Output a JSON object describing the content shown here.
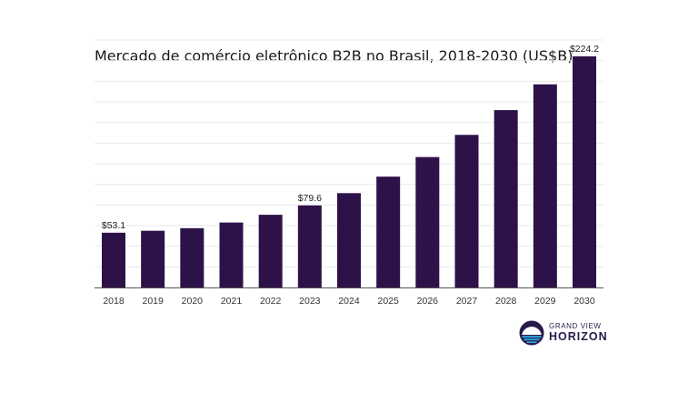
{
  "colors": {
    "bar": "#2d1249",
    "logo_dark": "#2a1a4a",
    "logo_blue": "#2aa8e0"
  },
  "logo": {
    "top_text": "GRAND VIEW",
    "bottom_text": "HORIZON",
    "icon": "sunrise-icon"
  },
  "chart_data": {
    "type": "bar",
    "title": "Mercado de comércio eletrônico B2B no Brasil, 2018-2030 (US$B)",
    "xlabel": "",
    "ylabel": "",
    "grid": true,
    "ylim": [
      0,
      240
    ],
    "categories": [
      "2018",
      "2019",
      "2020",
      "2021",
      "2022",
      "2023",
      "2024",
      "2025",
      "2026",
      "2027",
      "2028",
      "2029",
      "2030"
    ],
    "values": [
      53.1,
      55.0,
      57.5,
      63.0,
      70.5,
      79.6,
      91.5,
      107.5,
      126.5,
      148.0,
      172.0,
      197.0,
      224.2
    ],
    "data_labels": [
      {
        "index": 0,
        "text": "$53.1"
      },
      {
        "index": 5,
        "text": "$79.6"
      },
      {
        "index": 12,
        "text": "$224.2"
      }
    ]
  }
}
